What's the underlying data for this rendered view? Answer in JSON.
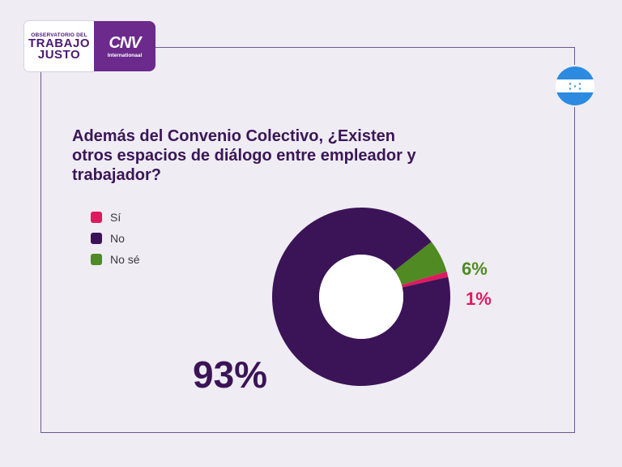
{
  "logos": {
    "left_small": "OBSERVATORIO DEL",
    "left_line1": "TRABAJO",
    "left_line2": "JUSTO",
    "right_mark": "CNV",
    "right_sub": "Internationaal"
  },
  "flag": {
    "country": "Honduras",
    "stripe_color": "#2c8be0"
  },
  "chart_data": {
    "type": "pie",
    "donut": true,
    "title": "Además del Convenio Colectivo, ¿Existen otros espacios de diálogo entre empleador y trabajador?",
    "categories": [
      "Sí",
      "No",
      "No sé"
    ],
    "values": [
      1,
      93,
      6
    ],
    "value_labels": [
      "1%",
      "93%",
      "6%"
    ],
    "colors": [
      "#e0195f",
      "#3b1457",
      "#4f8a22"
    ],
    "legend_position": "left"
  }
}
